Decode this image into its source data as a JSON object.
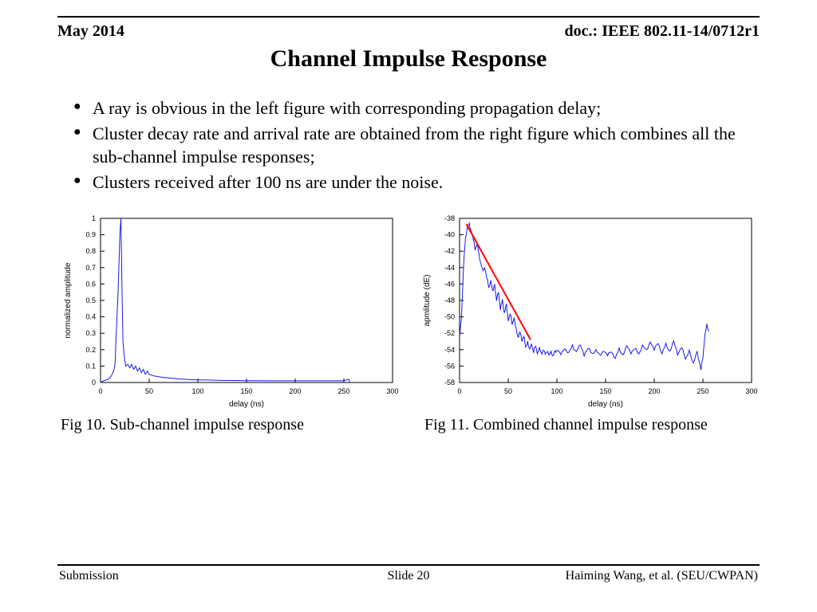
{
  "header": {
    "date": "May 2014",
    "doc": "doc.: IEEE 802.11-14/0712r1"
  },
  "title": "Channel Impulse Response",
  "bullets": [
    "A ray is obvious in the left figure with corresponding propagation delay;",
    "Cluster decay rate and arrival rate are obtained from the right figure which combines all the sub-channel impulse responses;",
    "Clusters received after 100 ns are under the noise."
  ],
  "footer": {
    "left": "Submission",
    "center": "Slide 20",
    "right": "Haiming Wang, et al. (SEU/CWPAN)"
  },
  "fig10": {
    "caption": "Fig 10. Sub-channel impulse response",
    "type": "line",
    "xlabel": "delay (ns)",
    "ylabel": "normalized amplitude",
    "xlim": [
      0,
      300
    ],
    "ylim": [
      0,
      1
    ],
    "xticks": [
      0,
      50,
      100,
      150,
      200,
      250,
      300
    ],
    "yticks": [
      0,
      0.1,
      0.2,
      0.3,
      0.4,
      0.5,
      0.6,
      0.7,
      0.8,
      0.9,
      1
    ],
    "line_color": "#1a1ae6",
    "line_width": 1,
    "box_color": "#000000",
    "tick_fontsize": 9,
    "label_fontsize": 10,
    "background": "#ffffff",
    "data": {
      "x": [
        0,
        3,
        6,
        8,
        10,
        12,
        14,
        15,
        16,
        18,
        20,
        21,
        22,
        23,
        24,
        25,
        26,
        28,
        30,
        32,
        34,
        36,
        38,
        40,
        42,
        44,
        46,
        48,
        50,
        55,
        60,
        65,
        70,
        80,
        90,
        100,
        110,
        120,
        130,
        140,
        150,
        160,
        170,
        180,
        190,
        200,
        210,
        220,
        230,
        240,
        250,
        255,
        256
      ],
      "y": [
        0.0,
        0.01,
        0.015,
        0.02,
        0.03,
        0.05,
        0.08,
        0.12,
        0.28,
        0.55,
        0.92,
        1.0,
        0.6,
        0.25,
        0.18,
        0.13,
        0.1,
        0.11,
        0.09,
        0.11,
        0.08,
        0.1,
        0.07,
        0.09,
        0.06,
        0.08,
        0.05,
        0.07,
        0.05,
        0.04,
        0.035,
        0.03,
        0.028,
        0.022,
        0.018,
        0.016,
        0.015,
        0.013,
        0.012,
        0.012,
        0.011,
        0.011,
        0.01,
        0.01,
        0.01,
        0.01,
        0.01,
        0.01,
        0.01,
        0.01,
        0.01,
        0.02,
        0.0
      ]
    }
  },
  "fig11": {
    "caption": "Fig 11. Combined channel impulse response",
    "type": "line",
    "xlabel": "delay (ns)",
    "ylabel": "apmlitude (dE)",
    "xlim": [
      0,
      300
    ],
    "ylim": [
      -58,
      -38
    ],
    "xticks": [
      0,
      50,
      100,
      150,
      200,
      250,
      300
    ],
    "yticks": [
      -58,
      -56,
      -54,
      -52,
      -50,
      -48,
      -46,
      -44,
      -42,
      -40,
      -38
    ],
    "line_color": "#1a1ae6",
    "line_width": 1,
    "box_color": "#000000",
    "trend_color": "#ff0000",
    "trend_width": 2,
    "tick_fontsize": 9,
    "label_fontsize": 10,
    "background": "#ffffff",
    "trend": {
      "x": [
        7,
        73
      ],
      "y": [
        -38.7,
        -52.8
      ]
    },
    "data": {
      "x": [
        0,
        2,
        4,
        6,
        8,
        10,
        12,
        14,
        16,
        18,
        20,
        22,
        24,
        26,
        28,
        30,
        32,
        34,
        36,
        38,
        40,
        42,
        44,
        46,
        48,
        50,
        52,
        54,
        56,
        58,
        60,
        62,
        64,
        66,
        68,
        70,
        72,
        74,
        76,
        78,
        80,
        82,
        84,
        86,
        88,
        90,
        92,
        94,
        96,
        98,
        100,
        104,
        108,
        112,
        116,
        120,
        124,
        128,
        132,
        136,
        140,
        144,
        148,
        152,
        156,
        160,
        164,
        168,
        172,
        176,
        180,
        184,
        188,
        192,
        196,
        200,
        204,
        208,
        212,
        216,
        220,
        224,
        228,
        232,
        236,
        240,
        244,
        248,
        250,
        252,
        254,
        256
      ],
      "y": [
        -52.5,
        -50.0,
        -44.0,
        -40.5,
        -39.0,
        -38.8,
        -39.5,
        -40.5,
        -41.8,
        -41.0,
        -42.5,
        -43.5,
        -44.5,
        -44.0,
        -45.2,
        -46.5,
        -45.5,
        -47.0,
        -46.0,
        -48.0,
        -47.0,
        -49.0,
        -48.0,
        -49.5,
        -48.5,
        -50.5,
        -49.5,
        -51.0,
        -50.0,
        -51.5,
        -52.5,
        -51.8,
        -53.0,
        -52.2,
        -53.8,
        -53.0,
        -54.0,
        -53.4,
        -54.2,
        -53.6,
        -54.4,
        -53.8,
        -54.5,
        -54.0,
        -54.6,
        -54.1,
        -54.7,
        -54.2,
        -54.8,
        -54.3,
        -54.0,
        -54.6,
        -53.8,
        -54.4,
        -53.6,
        -54.2,
        -53.5,
        -54.6,
        -53.8,
        -54.5,
        -54.0,
        -54.8,
        -54.1,
        -54.7,
        -54.2,
        -55.0,
        -54.0,
        -54.6,
        -53.6,
        -54.4,
        -53.8,
        -54.6,
        -53.4,
        -54.2,
        -53.0,
        -54.0,
        -53.2,
        -54.4,
        -53.4,
        -54.2,
        -53.0,
        -54.6,
        -53.6,
        -55.2,
        -54.0,
        -55.8,
        -54.2,
        -56.4,
        -55.0,
        -52.2,
        -51.0,
        -51.8
      ]
    }
  }
}
